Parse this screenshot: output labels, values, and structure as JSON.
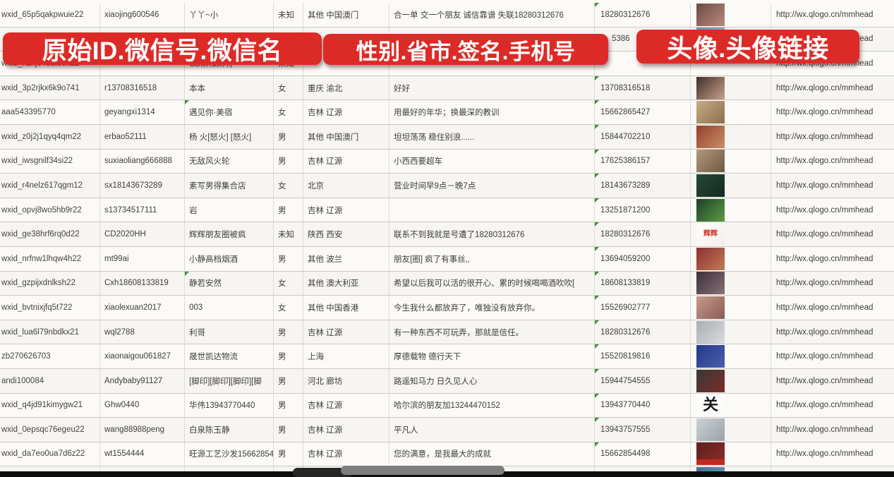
{
  "banners": {
    "left": {
      "label": "原始ID.微信号.微信名"
    },
    "middle": {
      "label": "性别.省市.签名.手机号"
    },
    "right": {
      "label": "头像.头像链接"
    }
  },
  "banner_color": "#dc2b27",
  "grid_marker_color": "#3f8f3f",
  "player_bar": {
    "bar_color": "#0e0e0e",
    "scrubber_color": "#7e7e7e"
  },
  "table": {
    "rows": [
      {
        "id": "wxid_65p5qakpwuie22",
        "wechat_id": "xiaojing600546",
        "name": "丫丫~小",
        "gender": "未知",
        "region": "其他 中国澳门",
        "signature": "合一单 交一个朋友 诚信靠谱 失联18280312676",
        "phone": "18280312676",
        "link": "http://wx.qlogo.cn/mmhead",
        "avatar": {
          "c1": "#6e4a44",
          "c2": "#b88a7c"
        }
      },
      {
        "id": "",
        "wechat_id": "",
        "name": "",
        "gender": "",
        "region": "",
        "signature": "",
        "phone": "5386",
        "phone_gap": true,
        "link": "http://wx.qlogo.cn/mmhead",
        "avatar": {
          "c1": "#7a8fa6",
          "c2": "#9db0c0"
        }
      },
      {
        "id": "wxid_h1xj048al3ok22",
        "wechat_id": "",
        "name": "CD麻辣麻将",
        "gender": "未知",
        "region": "",
        "signature": "",
        "phone": "",
        "link": "http://wx.qlogo.cn/mmhead",
        "avatar": null
      },
      {
        "id": "wxid_3p2rjkx6k9o741",
        "wechat_id": "r13708316518",
        "name": "本本",
        "gender": "女",
        "region": "重庆 渝北",
        "signature": "好好",
        "phone": "13708316518",
        "link": "http://wx.qlogo.cn/mmhead",
        "avatar": {
          "c1": "#3f2f2a",
          "c2": "#c9a18c"
        }
      },
      {
        "id": "aaa543395770",
        "wechat_id": "geyangxi1314",
        "name": "遇见你·美宿",
        "name_flag": true,
        "gender": "女",
        "region": "吉林 辽源",
        "signature": "用最好的年华；换最深的教训",
        "phone": "15662865427",
        "link": "http://wx.qlogo.cn/mmhead",
        "avatar": {
          "c1": "#c7ac84",
          "c2": "#8a6f4e"
        }
      },
      {
        "id": "wxid_z0j2j1qyq4qm22",
        "wechat_id": "erbao52111",
        "name": "杨 火[怒火] [怒火]",
        "gender": "男",
        "region": "其他 中国澳门",
        "signature": "坦坦荡荡 稳住别浪......",
        "phone": "15844702210",
        "link": "http://wx.qlogo.cn/mmhead",
        "avatar": {
          "c1": "#93402c",
          "c2": "#c98f66"
        }
      },
      {
        "id": "wxid_iwsgnilf34si22",
        "wechat_id": "suxiaoliang666888",
        "name": "无敌风火轮",
        "gender": "男",
        "region": "吉林 辽源",
        "signature": "小西西要超车",
        "phone": "17625386157",
        "link": "http://wx.qlogo.cn/mmhead",
        "avatar": {
          "c1": "#b4977a",
          "c2": "#6f5a46"
        }
      },
      {
        "id": "wxid_r4nelz617qgm12",
        "wechat_id": "sx18143673289",
        "name": "素写男得集合店",
        "gender": "女",
        "region": "北京",
        "signature": "营业时间早9点－晚7点",
        "phone": "18143673289",
        "link": "http://wx.qlogo.cn/mmhead",
        "avatar": {
          "c1": "#24483a",
          "c2": "#16291f"
        }
      },
      {
        "id": "wxid_opvj8wo5hb9r22",
        "wechat_id": "s13734517111",
        "name": "岩",
        "gender": "男",
        "region": "吉林 辽源",
        "signature": "",
        "phone": "13251871200",
        "link": "http://wx.qlogo.cn/mmhead",
        "avatar": {
          "c1": "#1e3f2a",
          "c2": "#5d9b43"
        }
      },
      {
        "id": "wxid_ge38hrf6rq0d22",
        "wechat_id": "CD2020HH",
        "name": "辉辉朋友圈被疯",
        "gender": "未知",
        "region": "陕西 西安",
        "signature": "联系不到我就是号遭了18280312676",
        "phone": "18280312676",
        "link": "http://wx.qlogo.cn/mmhead",
        "avatar": {
          "c1": "#ffffff",
          "c2": "#f3eeea",
          "label": "辉辉",
          "label_color": "#d42f24",
          "label_size": 10
        }
      },
      {
        "id": "wxid_nrfnw1lhqw4h22",
        "wechat_id": "mt99ai",
        "name": "小静高档烟酒",
        "gender": "男",
        "region": "其他 波兰",
        "signature": "朋友[圈] 疯了有事丝,,",
        "phone": "13694059200",
        "link": "http://wx.qlogo.cn/mmhead",
        "avatar": {
          "c1": "#8f3030",
          "c2": "#c07a58"
        }
      },
      {
        "id": "wxid_gzpijxdnlksh22",
        "wechat_id": "Cxh18608133819",
        "name": "静若安然",
        "name_flag": true,
        "gender": "女",
        "region": "其他 澳大利亚",
        "signature": "希望以后我可以活的很开心、累的时候喝喝酒吹吹[",
        "phone": "18608133819",
        "link": "http://wx.qlogo.cn/mmhead",
        "avatar": {
          "c1": "#3a3038",
          "c2": "#8a6f78"
        }
      },
      {
        "id": "wxid_bvtnixjfq5t722",
        "wechat_id": "xiaolexuan2017",
        "name": "003",
        "gender": "女",
        "region": "其他 中国香港",
        "signature": "今生我什么都放弃了，唯独没有放弃你。",
        "phone": "15526902777",
        "link": "http://wx.qlogo.cn/mmhead",
        "avatar": {
          "c1": "#c79a8c",
          "c2": "#885c56"
        }
      },
      {
        "id": "wxid_lua6l79nbdkx21",
        "wechat_id": "wql2788",
        "name": "利哥",
        "gender": "男",
        "region": "吉林 辽源",
        "signature": "有一种东西不可玩弄，那就是信任。",
        "phone": "18280312676",
        "link": "http://wx.qlogo.cn/mmhead",
        "avatar": {
          "c1": "#a8adb2",
          "c2": "#dadcde"
        }
      },
      {
        "id": "zb270626703",
        "wechat_id": "xiaonaigou061827",
        "name": "晟世凯达物流",
        "gender": "男",
        "region": "上海",
        "signature": "厚德载物 德行天下",
        "phone": "15520819816",
        "link": "http://wx.qlogo.cn/mmhead",
        "avatar": {
          "c1": "#233a86",
          "c2": "#4a5fb0"
        }
      },
      {
        "id": "andi100084",
        "wechat_id": "Andybaby91127",
        "name": "[脚印][脚印][脚印][脚",
        "gender": "男",
        "region": "河北 廊坊",
        "signature": "路遥知马力 日久见人心",
        "phone": "15944754555",
        "link": "http://wx.qlogo.cn/mmhead",
        "avatar": {
          "c1": "#383838",
          "c2": "#7c2c2c"
        }
      },
      {
        "id": "wxid_q4jd91kimygw21",
        "wechat_id": "Ghw0440",
        "name": "华伟13943770440",
        "gender": "男",
        "region": "吉林 辽源",
        "signature": "哈尔滨的朋友加13244470152",
        "phone": "13943770440",
        "link": "http://wx.qlogo.cn/mmhead",
        "avatar": {
          "c1": "#ffffff",
          "c2": "#fafafa",
          "label": "关",
          "label_color": "#1a1a1a",
          "label_size": 22
        }
      },
      {
        "id": "wxid_0epsqc76egeu22",
        "wechat_id": "wang88988peng",
        "name": "白泉陈玉静",
        "gender": "男",
        "region": "吉林 辽源",
        "signature": "平凡人",
        "phone": "13943757555",
        "link": "http://wx.qlogo.cn/mmhead",
        "avatar": {
          "c1": "#ccd1d4",
          "c2": "#9aa2a8"
        }
      },
      {
        "id": "wxid_da7eo0ua7d6z22",
        "wechat_id": "wt1554444",
        "name": "旺源工艺沙发15662854",
        "gender": "男",
        "region": "吉林 辽源",
        "signature": "您的满意，是我最大的成就",
        "phone": "15662854498",
        "link": "http://wx.qlogo.cn/mmhead",
        "avatar": {
          "c1": "#5c2020",
          "c2": "#8c2f2a",
          "strip": "#c22a20"
        }
      },
      {
        "id": "",
        "wechat_id": "",
        "name": "",
        "gender": "",
        "region": "",
        "signature": "",
        "phone": "",
        "link": "",
        "avatar": {
          "c1": "#4a6a9a",
          "c2": "#7a9ac0"
        },
        "partial": true
      }
    ]
  }
}
